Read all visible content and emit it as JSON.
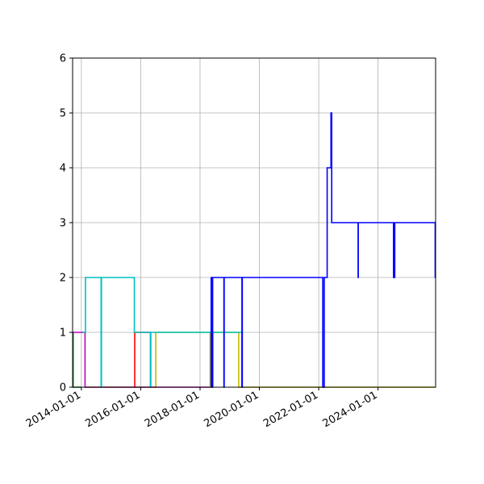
{
  "chart_data": {
    "type": "line",
    "title": "",
    "xlabel": "",
    "ylabel": "",
    "x_axis_type": "date",
    "xlim": [
      "2013-09-15",
      "2025-12-10"
    ],
    "ylim": [
      0,
      6
    ],
    "x_tick_labels": [
      "2014-01-01",
      "2016-01-01",
      "2018-01-01",
      "2020-01-01",
      "2022-01-01",
      "2024-01-01"
    ],
    "y_tick_labels": [
      "0",
      "1",
      "2",
      "3",
      "4",
      "5",
      "6"
    ],
    "grid": true,
    "legend": "none",
    "series": [
      {
        "color": "#0000ff",
        "step": true,
        "points": [
          [
            "2018-05-15",
            2
          ],
          [
            "2018-05-18",
            0
          ],
          [
            "2018-05-21",
            2
          ],
          [
            "2018-05-24",
            0
          ],
          [
            "2018-05-27",
            2
          ],
          [
            "2018-06-01",
            0
          ],
          [
            "2018-06-05",
            2
          ],
          [
            "2018-10-20",
            2
          ],
          [
            "2018-10-22",
            0
          ],
          [
            "2018-10-25",
            2
          ],
          [
            "2019-06-01",
            0
          ],
          [
            "2019-06-05",
            2
          ],
          [
            "2021-10-15",
            2
          ],
          [
            "2022-02-20",
            0
          ],
          [
            "2022-03-10",
            2
          ],
          [
            "2022-04-15",
            4
          ],
          [
            "2022-06-01",
            5
          ],
          [
            "2022-06-10",
            3
          ],
          [
            "2023-05-01",
            2
          ],
          [
            "2023-05-03",
            3
          ],
          [
            "2024-07-10",
            2
          ],
          [
            "2024-07-15",
            3
          ],
          [
            "2024-07-20",
            2
          ],
          [
            "2024-07-25",
            3
          ],
          [
            "2025-12-05",
            2
          ],
          [
            "2025-12-10",
            2
          ]
        ]
      },
      {
        "color": "#00bfbf",
        "step": true,
        "points": [
          [
            "2014-01-15",
            1
          ],
          [
            "2014-02-20",
            2
          ],
          [
            "2014-09-01",
            0
          ],
          [
            "2014-09-05",
            2
          ],
          [
            "2015-10-15",
            1
          ],
          [
            "2016-05-01",
            0
          ],
          [
            "2016-05-05",
            1
          ],
          [
            "2019-05-01",
            1
          ],
          [
            "2019-06-01",
            0
          ],
          [
            "2019-06-05",
            0
          ]
        ]
      },
      {
        "color": "#bf00bf",
        "step": true,
        "points": [
          [
            "2013-09-20",
            1
          ],
          [
            "2014-02-15",
            0
          ],
          [
            "2018-04-20",
            0
          ],
          [
            "2018-04-25",
            0
          ]
        ]
      },
      {
        "color": "#ff0000",
        "step": true,
        "points": [
          [
            "2015-10-15",
            0
          ],
          [
            "2015-10-20",
            1
          ],
          [
            "2016-05-01",
            0
          ],
          [
            "2016-05-05",
            0
          ]
        ]
      },
      {
        "color": "#008000",
        "step": true,
        "points": [
          [
            "2013-09-15",
            0
          ],
          [
            "2013-09-18",
            1
          ],
          [
            "2013-09-22",
            0
          ],
          [
            "2014-01-01",
            0
          ]
        ]
      },
      {
        "color": "#bfbf00",
        "step": true,
        "points": [
          [
            "2014-02-15",
            0
          ],
          [
            "2016-07-01",
            0
          ],
          [
            "2016-07-05",
            1
          ],
          [
            "2018-05-01",
            1
          ],
          [
            "2018-05-04",
            0
          ],
          [
            "2018-05-08",
            1
          ],
          [
            "2018-05-11",
            0
          ],
          [
            "2018-05-14",
            1
          ],
          [
            "2018-05-17",
            0
          ],
          [
            "2018-05-20",
            1
          ],
          [
            "2018-05-23",
            0
          ],
          [
            "2018-05-26",
            1
          ],
          [
            "2018-05-29",
            0
          ],
          [
            "2018-06-02",
            1
          ],
          [
            "2018-06-05",
            0
          ],
          [
            "2018-06-08",
            1
          ],
          [
            "2019-04-20",
            1
          ],
          [
            "2019-04-22",
            0
          ],
          [
            "2025-12-10",
            0
          ]
        ]
      }
    ]
  }
}
